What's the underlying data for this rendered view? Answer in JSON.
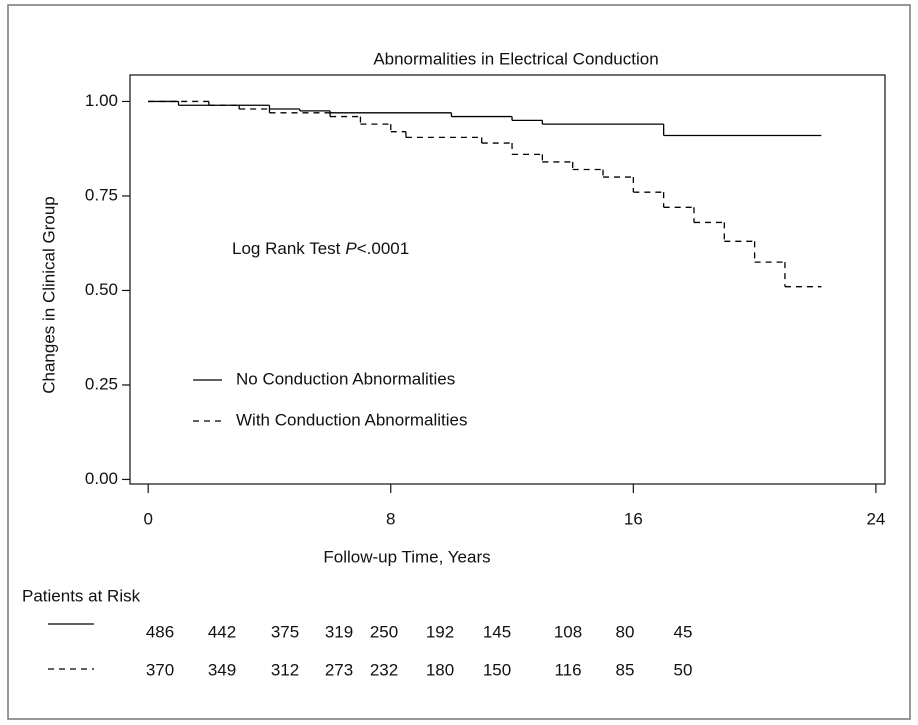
{
  "chart_data": {
    "type": "step",
    "title": "Abnormalities in Electrical Conduction",
    "x_label": "Follow-up Time, Years",
    "y_label": "Changes in Clinical Group",
    "annotation": [
      "Log Rank Test",
      "P",
      "<.0001"
    ],
    "xlim": [
      -0.6,
      24.3
    ],
    "ylim": [
      -0.012,
      1.07
    ],
    "xticks": [
      0,
      8,
      16,
      24
    ],
    "yticks": [
      {
        "value": 0,
        "label": "0.00"
      },
      {
        "value": 0.25,
        "label": "0.25"
      },
      {
        "value": 0.5,
        "label": "0.50"
      },
      {
        "value": 0.75,
        "label": "0.75"
      },
      {
        "value": 1,
        "label": "1.00"
      }
    ],
    "series": [
      {
        "name": "No Conduction Abnormalities",
        "color": "#000000",
        "linestyle": "solid",
        "x": [
          0,
          1,
          4,
          5,
          6,
          10,
          12,
          13,
          17,
          22.2
        ],
        "values": [
          1.0,
          0.99,
          0.98,
          0.975,
          0.97,
          0.96,
          0.95,
          0.94,
          0.91,
          0.91
        ]
      },
      {
        "name": "With Conduction Abnormalities",
        "color": "#000000",
        "linestyle": "dashed",
        "x": [
          0,
          2,
          3,
          4,
          6,
          7,
          8,
          8.5,
          11,
          12,
          13,
          14,
          15,
          16,
          17,
          18,
          19,
          20,
          21,
          22.2
        ],
        "values": [
          1.0,
          0.99,
          0.98,
          0.97,
          0.96,
          0.94,
          0.92,
          0.905,
          0.89,
          0.86,
          0.84,
          0.82,
          0.8,
          0.76,
          0.72,
          0.68,
          0.63,
          0.575,
          0.51,
          0.51
        ]
      }
    ],
    "risk_table": {
      "title": "Patients at Risk",
      "rows": [
        [
          "486",
          "442",
          "375",
          "319",
          "250",
          "192",
          "145",
          "108",
          "80",
          "45"
        ],
        [
          "370",
          "349",
          "312",
          "273",
          "232",
          "180",
          "150",
          "116",
          "85",
          "50"
        ]
      ]
    }
  }
}
